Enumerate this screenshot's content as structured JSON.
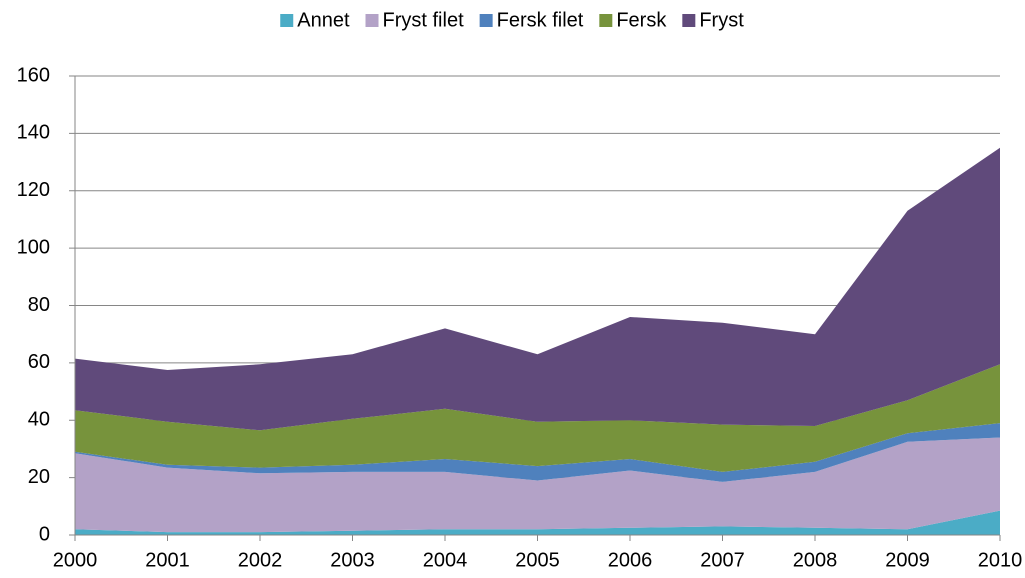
{
  "chart_data": {
    "type": "stacked_area",
    "x": [
      2000,
      2001,
      2002,
      2003,
      2004,
      2005,
      2006,
      2007,
      2008,
      2009,
      2010
    ],
    "xlim": [
      2000,
      2010
    ],
    "xticks": [
      2000,
      2001,
      2002,
      2003,
      2004,
      2005,
      2006,
      2007,
      2008,
      2009,
      2010
    ],
    "ylim": [
      0,
      160
    ],
    "yticks": [
      0,
      20,
      40,
      60,
      80,
      100,
      120,
      140,
      160
    ],
    "grid": true,
    "legend": "top",
    "series": [
      {
        "name": "Annet",
        "color": "#4bacc6",
        "values": [
          2,
          1,
          1,
          1.5,
          2,
          2,
          2.5,
          3,
          2.5,
          2,
          8.5
        ]
      },
      {
        "name": "Fryst filet",
        "color": "#b3a2c7",
        "values": [
          26.5,
          22.5,
          20.5,
          20.5,
          20,
          17,
          20,
          15.5,
          19.5,
          30.5,
          25.5
        ]
      },
      {
        "name": "Fersk filet",
        "color": "#4f81bd",
        "values": [
          0.5,
          1,
          2,
          2.5,
          4.5,
          5,
          4,
          3.5,
          3.5,
          3,
          5
        ]
      },
      {
        "name": "Fersk",
        "color": "#77933c",
        "values": [
          14.5,
          15,
          13,
          16,
          17.5,
          15.5,
          13.5,
          16.5,
          12.5,
          11.5,
          20.5
        ]
      },
      {
        "name": "Fryst",
        "color": "#604a7b",
        "values": [
          18,
          18,
          23,
          22.5,
          28,
          23.5,
          36,
          35.5,
          32,
          66,
          75.5
        ]
      }
    ]
  }
}
